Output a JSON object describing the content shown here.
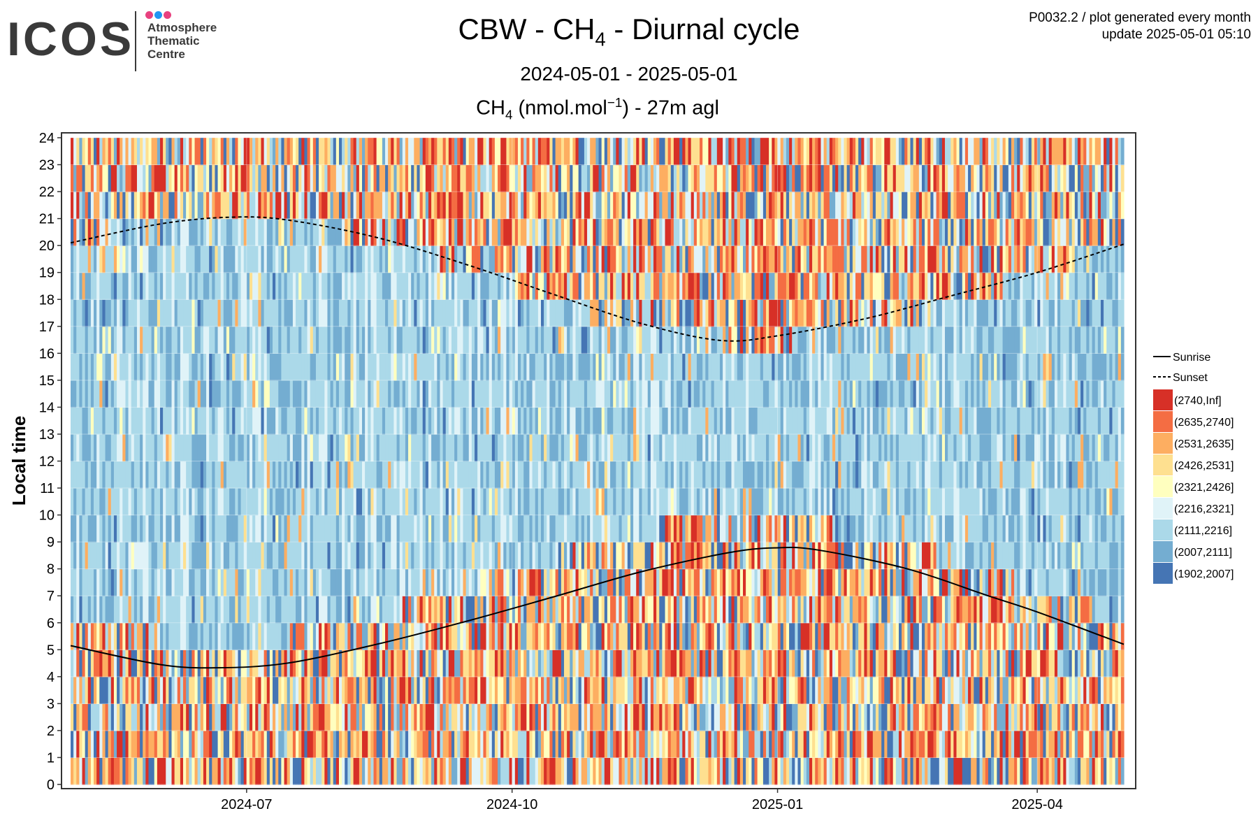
{
  "logo": {
    "wordmark": "ICOS",
    "lines": [
      "Atmosphere",
      "Thematic",
      "Centre"
    ],
    "dot_colors": [
      "#e8417f",
      "#2196f3",
      "#e8417f"
    ],
    "text_color": "#3a3a3a"
  },
  "header": {
    "title_main": "CBW - CH",
    "title_sub": "4",
    "title_rest": " - Diurnal cycle",
    "subtitle": "2024-05-01 - 2025-05-01",
    "var_main": "CH",
    "var_sub": "4",
    "var_mid": " (nmol.mol",
    "var_sup": "−1",
    "var_rest": ") - 27m agl",
    "meta_line1": "P0032.2 / plot generated every month",
    "meta_line2": "update  2025-05-01 05:10"
  },
  "chart_data": {
    "type": "heatmap",
    "x_label": "",
    "y_label": "Local time",
    "x_range": [
      "2024-05-01",
      "2025-05-01"
    ],
    "y_range": [
      0,
      24
    ],
    "y_ticks": [
      0,
      1,
      2,
      3,
      4,
      5,
      6,
      7,
      8,
      9,
      10,
      11,
      12,
      13,
      14,
      15,
      16,
      17,
      18,
      19,
      20,
      21,
      22,
      23,
      24
    ],
    "x_ticks": [
      {
        "date": "2024-07-01",
        "label": "2024-07"
      },
      {
        "date": "2024-10-01",
        "label": "2024-10"
      },
      {
        "date": "2025-01-01",
        "label": "2025-01"
      },
      {
        "date": "2025-04-01",
        "label": "2025-04"
      }
    ],
    "grid": true,
    "legend_position": "right",
    "bins": [
      {
        "label": "(2740,Inf]",
        "color": "#d73027"
      },
      {
        "label": "(2635,2740]",
        "color": "#f46d43"
      },
      {
        "label": "(2531,2635]",
        "color": "#fdae61"
      },
      {
        "label": "(2426,2531]",
        "color": "#fee090"
      },
      {
        "label": "(2321,2426]",
        "color": "#ffffbf"
      },
      {
        "label": "(2216,2321]",
        "color": "#e0f3f8"
      },
      {
        "label": "(2111,2216]",
        "color": "#abd9e9"
      },
      {
        "label": "(2007,2111]",
        "color": "#74add1"
      },
      {
        "label": "(1902,2007]",
        "color": "#4575b4"
      }
    ],
    "lines": [
      {
        "name": "Sunrise",
        "style": "solid",
        "points": [
          {
            "date": "2024-05-01",
            "hour": 5.15
          },
          {
            "date": "2024-06-01",
            "hour": 4.45
          },
          {
            "date": "2024-06-21",
            "hour": 4.33
          },
          {
            "date": "2024-07-15",
            "hour": 4.5
          },
          {
            "date": "2024-08-15",
            "hour": 5.2
          },
          {
            "date": "2024-09-15",
            "hour": 6.05
          },
          {
            "date": "2024-10-15",
            "hour": 6.95
          },
          {
            "date": "2024-11-15",
            "hour": 7.9
          },
          {
            "date": "2024-12-15",
            "hour": 8.6
          },
          {
            "date": "2024-12-31",
            "hour": 8.78
          },
          {
            "date": "2025-01-15",
            "hour": 8.7
          },
          {
            "date": "2025-02-15",
            "hour": 8.0
          },
          {
            "date": "2025-03-15",
            "hour": 7.0
          },
          {
            "date": "2025-04-01",
            "hour": 6.4
          },
          {
            "date": "2025-05-01",
            "hour": 5.2
          }
        ]
      },
      {
        "name": "Sunset",
        "style": "dashed",
        "points": [
          {
            "date": "2024-05-01",
            "hour": 20.1
          },
          {
            "date": "2024-06-01",
            "hour": 20.8
          },
          {
            "date": "2024-06-25",
            "hour": 21.05
          },
          {
            "date": "2024-07-15",
            "hour": 20.95
          },
          {
            "date": "2024-08-15",
            "hour": 20.3
          },
          {
            "date": "2024-09-15",
            "hour": 19.3
          },
          {
            "date": "2024-10-15",
            "hour": 18.2
          },
          {
            "date": "2024-11-15",
            "hour": 17.1
          },
          {
            "date": "2024-12-12",
            "hour": 16.48
          },
          {
            "date": "2025-01-01",
            "hour": 16.65
          },
          {
            "date": "2025-02-01",
            "hour": 17.3
          },
          {
            "date": "2025-03-01",
            "hour": 18.1
          },
          {
            "date": "2025-04-01",
            "hour": 19.0
          },
          {
            "date": "2025-05-01",
            "hour": 20.05
          }
        ]
      }
    ]
  }
}
